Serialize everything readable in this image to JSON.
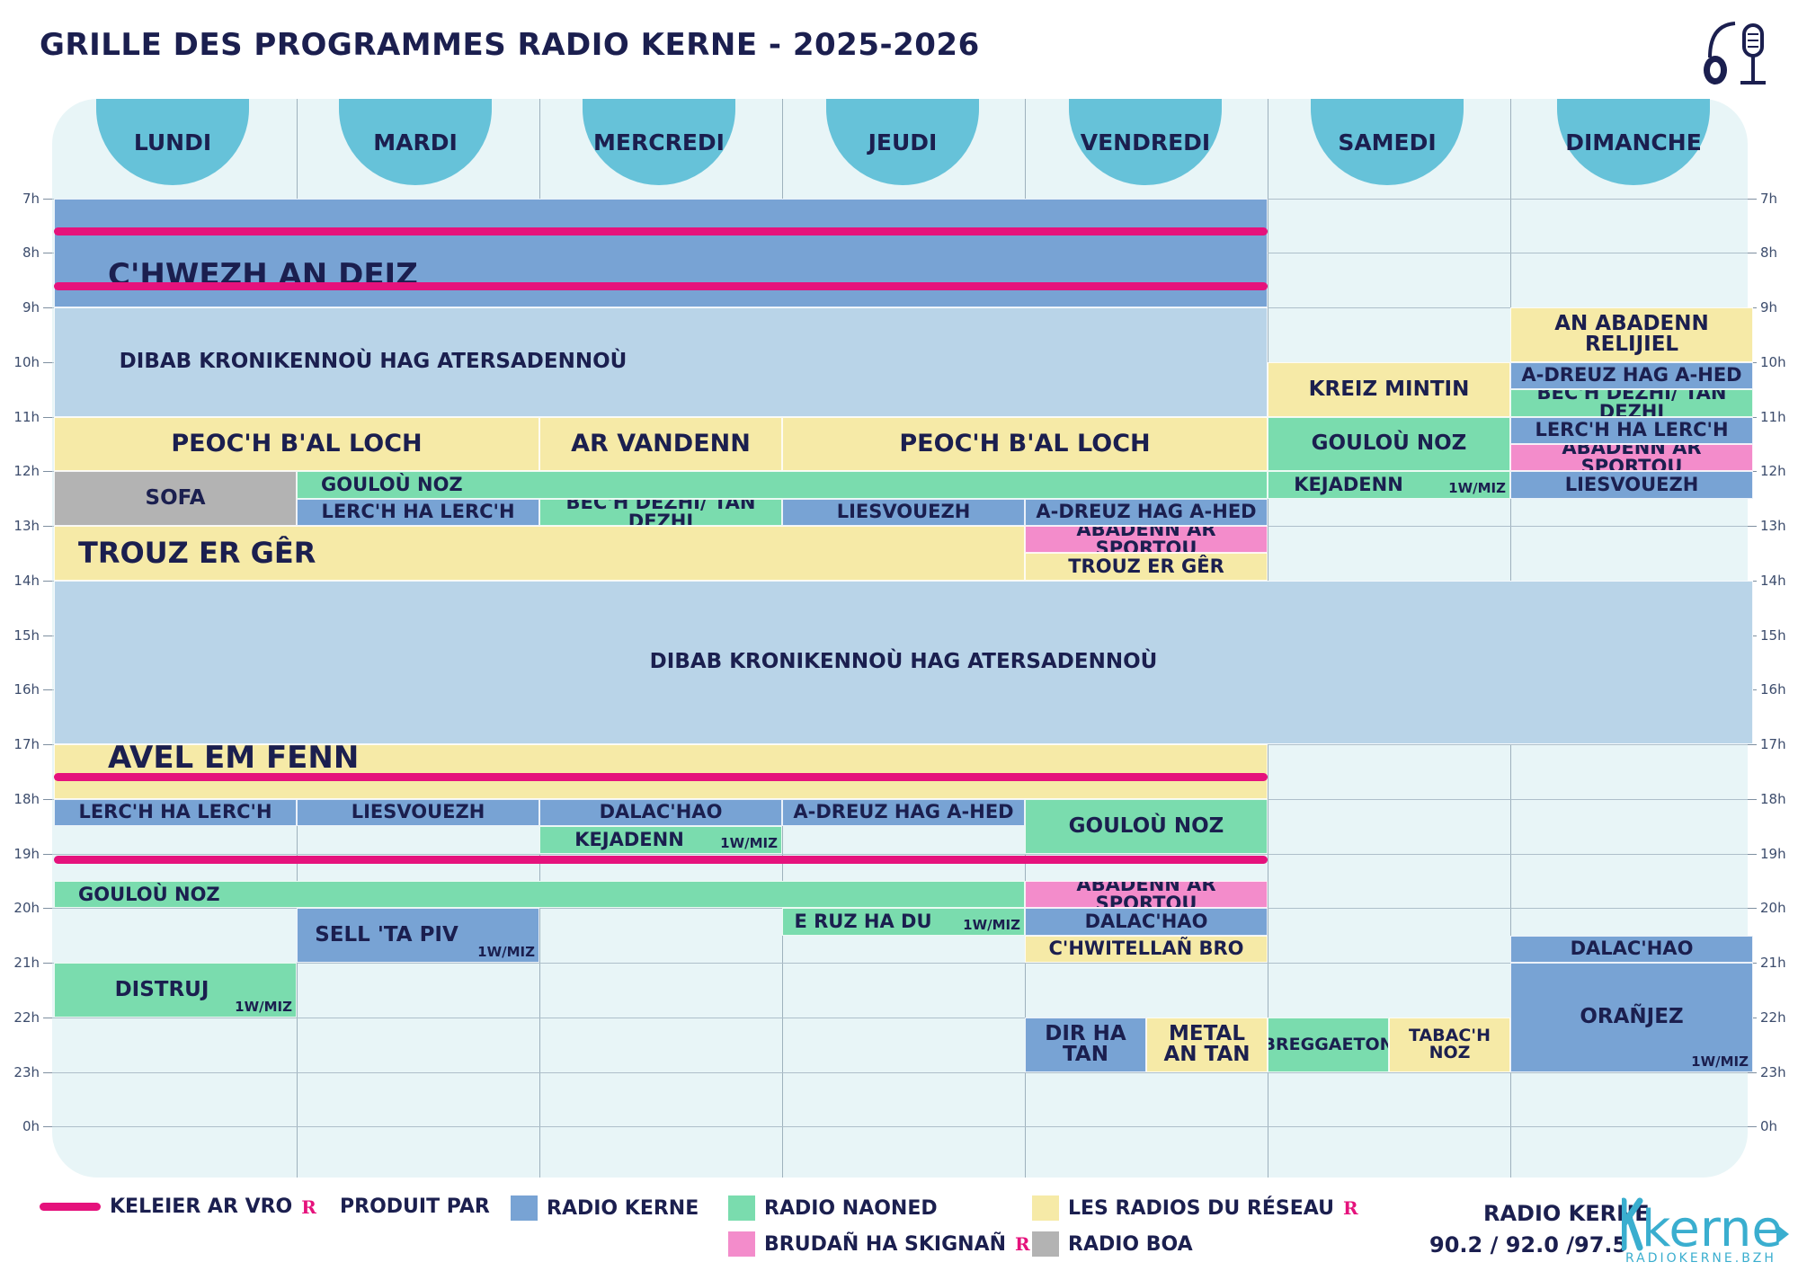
{
  "title": "GRILLE DES PROGRAMMES RADIO KERNE - 2025-2026",
  "colors": {
    "radio_kerne": "#78a3d4",
    "radio_kerne_light": "#b9d4e8",
    "radio_naoned": "#7adcae",
    "brudan": "#f38ccb",
    "reseau": "#f6eaa7",
    "radio_boa": "#b3b3b3",
    "news": "#e5127c",
    "day_tab": "#66c2d9",
    "grid_bg": "#e8f5f7"
  },
  "days": [
    "LUNDI",
    "MARDI",
    "MERCREDI",
    "JEUDI",
    "VENDREDI",
    "SAMEDI",
    "DIMANCHE"
  ],
  "hours": [
    "7h",
    "8h",
    "9h",
    "10h",
    "11h",
    "12h",
    "13h",
    "14h",
    "15h",
    "16h",
    "17h",
    "18h",
    "19h",
    "20h",
    "21h",
    "22h",
    "23h",
    "0h"
  ],
  "programs": [
    {
      "name": "",
      "day": 0,
      "days": 5,
      "start": 7,
      "end": 9,
      "color": "radio_kerne"
    },
    {
      "name": "C'HWEZH AN DEIZ",
      "style": "big",
      "day": 0,
      "days": 5,
      "start": 8,
      "end": 8.8,
      "color": "none",
      "align": "left"
    },
    {
      "name": "DIBAB KRONIKENNOÙ HAG ATERSADENNOÙ",
      "day": 0,
      "days": 5,
      "start": 9,
      "end": 11,
      "color": "radio_kerne_light",
      "shift": -320
    },
    {
      "name": "AN ABADENN RELIJIEL",
      "day": 6,
      "start": 9,
      "end": 10,
      "color": "reseau"
    },
    {
      "name": "KREIZ MINTIN",
      "day": 5,
      "start": 10,
      "end": 11,
      "color": "reseau"
    },
    {
      "name": "A-DREUZ HAG A-HED",
      "day": 6,
      "start": 10,
      "end": 10.5,
      "color": "radio_kerne"
    },
    {
      "name": "BEC'H DEZHI/ TAN DEZHI",
      "day": 6,
      "start": 10.5,
      "end": 11,
      "color": "radio_naoned"
    },
    {
      "name": "PEOC'H B'AL LOCH",
      "day": 0,
      "days": 2,
      "start": 11,
      "end": 12,
      "color": "reseau",
      "fs": 27
    },
    {
      "name": "AR VANDENN",
      "day": 2,
      "start": 11,
      "end": 12,
      "color": "reseau",
      "fs": 27
    },
    {
      "name": "PEOC'H B'AL LOCH",
      "day": 3,
      "days": 2,
      "start": 11,
      "end": 12,
      "color": "reseau",
      "fs": 27
    },
    {
      "name": "GOULOÙ NOZ",
      "day": 5,
      "start": 11,
      "end": 12,
      "color": "radio_naoned"
    },
    {
      "name": "LERC'H HA LERC'H",
      "day": 6,
      "start": 11,
      "end": 11.5,
      "color": "radio_kerne"
    },
    {
      "name": "ABADENN AR SPORTOU",
      "day": 6,
      "start": 11.5,
      "end": 12,
      "color": "brudan"
    },
    {
      "name": "SOFA",
      "day": 0,
      "start": 12,
      "end": 13,
      "color": "radio_boa"
    },
    {
      "name": "GOULOÙ NOZ",
      "day": 1,
      "days": 4,
      "start": 12,
      "end": 12.5,
      "color": "radio_naoned",
      "align": "left"
    },
    {
      "name": "KEJADENN",
      "day": 5,
      "start": 12,
      "end": 12.5,
      "color": "radio_naoned",
      "note": "1W/MIZ",
      "shift": -45
    },
    {
      "name": "LIESVOUEZH",
      "day": 6,
      "start": 12,
      "end": 12.5,
      "color": "radio_kerne"
    },
    {
      "name": "LERC'H HA LERC'H",
      "day": 1,
      "start": 12.5,
      "end": 13,
      "color": "radio_kerne"
    },
    {
      "name": "BEC'H DEZHI/ TAN DEZHI",
      "day": 2,
      "start": 12.5,
      "end": 13,
      "color": "radio_naoned"
    },
    {
      "name": "LIESVOUEZH",
      "day": 3,
      "start": 12.5,
      "end": 13,
      "color": "radio_kerne"
    },
    {
      "name": "A-DREUZ HAG A-HED",
      "day": 4,
      "start": 12.5,
      "end": 13,
      "color": "radio_kerne"
    },
    {
      "name": "TROUZ ER GÊR",
      "day": 0,
      "days": 4,
      "start": 13,
      "end": 14,
      "color": "reseau",
      "align": "left",
      "fs": 32
    },
    {
      "name": "ABADENN AR SPORTOU",
      "day": 4,
      "start": 13,
      "end": 13.5,
      "color": "brudan"
    },
    {
      "name": "TROUZ ER GÊR",
      "day": 4,
      "start": 13.5,
      "end": 14,
      "color": "reseau"
    },
    {
      "name": "DIBAB KRONIKENNOÙ HAG ATERSADENNOÙ",
      "day": 0,
      "days": 7,
      "start": 14,
      "end": 17,
      "color": "radio_kerne_light"
    },
    {
      "name": "",
      "day": 0,
      "days": 5,
      "start": 17,
      "end": 18,
      "color": "reseau"
    },
    {
      "name": "AVEL EM FENN",
      "style": "big",
      "day": 0,
      "days": 5,
      "start": 17,
      "end": 17.5,
      "color": "none",
      "align": "left"
    },
    {
      "name": "LERC'H HA LERC'H",
      "day": 0,
      "start": 18,
      "end": 18.5,
      "color": "radio_kerne"
    },
    {
      "name": "LIESVOUEZH",
      "day": 1,
      "start": 18,
      "end": 18.5,
      "color": "radio_kerne"
    },
    {
      "name": "DALAC'HAO",
      "day": 2,
      "start": 18,
      "end": 18.5,
      "color": "radio_kerne"
    },
    {
      "name": "A-DREUZ HAG A-HED",
      "day": 3,
      "start": 18,
      "end": 18.5,
      "color": "radio_kerne"
    },
    {
      "name": "GOULOÙ NOZ",
      "day": 4,
      "start": 18,
      "end": 19,
      "color": "radio_naoned"
    },
    {
      "name": "KEJADENN",
      "day": 2,
      "start": 18.5,
      "end": 19,
      "color": "radio_naoned",
      "note": "1W/MIZ",
      "shift": -35
    },
    {
      "name": "GOULOÙ NOZ",
      "day": 0,
      "days": 4,
      "start": 19.5,
      "end": 20,
      "color": "radio_naoned",
      "align": "left"
    },
    {
      "name": "ABADENN AR SPORTOU",
      "day": 4,
      "start": 19.5,
      "end": 20,
      "color": "brudan"
    },
    {
      "name": "SELL 'TA PIV",
      "day": 1,
      "start": 20,
      "end": 21,
      "color": "radio_kerne",
      "note": "1W/MIZ",
      "shift": -35
    },
    {
      "name": "E RUZ HA DU",
      "day": 3,
      "start": 20,
      "end": 20.5,
      "color": "radio_naoned",
      "note": "1W/MIZ",
      "shift": -45
    },
    {
      "name": "DALAC'HAO",
      "day": 4,
      "start": 20,
      "end": 20.5,
      "color": "radio_kerne"
    },
    {
      "name": "C'HWITELLAÑ BRO",
      "day": 4,
      "start": 20.5,
      "end": 21,
      "color": "reseau"
    },
    {
      "name": "DALAC'HAO",
      "day": 6,
      "start": 20.5,
      "end": 21,
      "color": "radio_kerne"
    },
    {
      "name": "DISTRUJ",
      "day": 0,
      "start": 21,
      "end": 22,
      "color": "radio_naoned",
      "note": "1W/MIZ",
      "shift": -15
    },
    {
      "name": "ORAÑJEZ",
      "day": 6,
      "start": 21,
      "end": 23,
      "color": "radio_kerne",
      "note": "1W/MIZ"
    },
    {
      "name": "DIR HA TAN",
      "day": 4,
      "half": 0,
      "start": 22,
      "end": 23,
      "color": "radio_kerne",
      "wrap": true
    },
    {
      "name": "METAL AN TAN",
      "day": 4,
      "half": 1,
      "start": 22,
      "end": 23,
      "color": "reseau",
      "wrap": true
    },
    {
      "name": "BREGGAETON",
      "day": 5,
      "half": 0,
      "start": 22,
      "end": 23,
      "color": "radio_naoned",
      "fs": 19
    },
    {
      "name": "TABAC'H NOZ",
      "day": 5,
      "half": 1,
      "start": 22,
      "end": 23,
      "color": "reseau",
      "wrap": true,
      "fs": 19
    }
  ],
  "news_lines": [
    {
      "day": 0,
      "days": 5,
      "hour": 7.6
    },
    {
      "day": 0,
      "days": 5,
      "hour": 8.6
    },
    {
      "day": 0,
      "days": 5,
      "hour": 17.6
    },
    {
      "day": 0,
      "days": 5,
      "hour": 19.1
    }
  ],
  "legend": {
    "keleier": "KELEIER AR VRO",
    "produit_par": "PRODUIT PAR",
    "radio_kerne": "RADIO KERNE",
    "radio_naoned": "RADIO NAONED",
    "reseau": "LES RADIOS DU RÉSEAU",
    "brudan": "BRUDAÑ HA SKIGNAÑ",
    "radio_boa": "RADIO BOA"
  },
  "footer": {
    "station": "RADIO KERNE",
    "frequencies": "90.2 / 92.0 /97.5",
    "logo_word": "kerne",
    "logo_url": "RADIOKERNE.BZH"
  },
  "badge": "R"
}
